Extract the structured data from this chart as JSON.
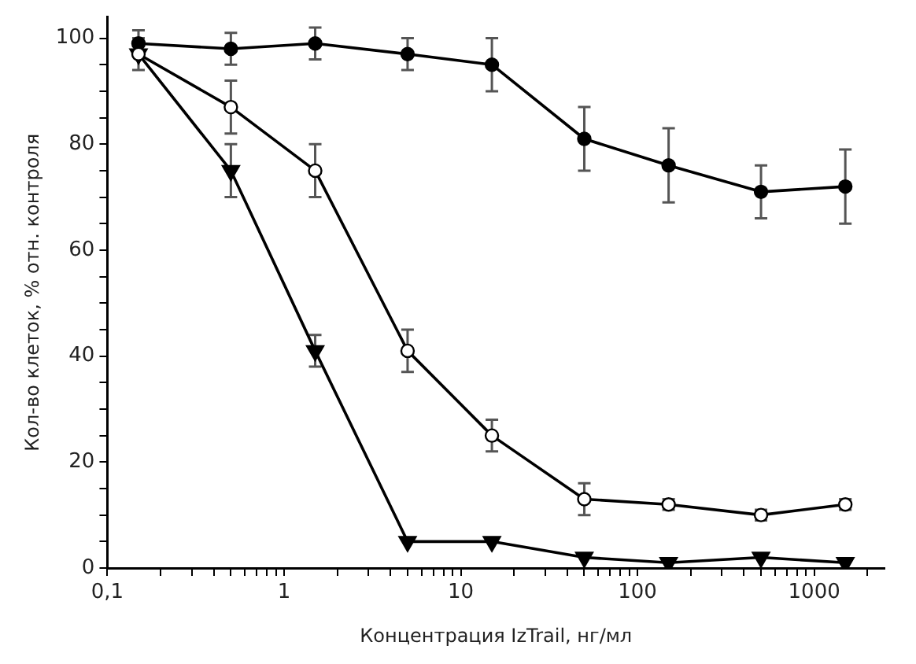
{
  "chart_data": {
    "type": "line",
    "xlabel": "Концентрация IzTrail, нг/мл",
    "ylabel": "Кол-во клеток, % отн. контроля",
    "x": [
      0.15,
      0.5,
      1.5,
      5,
      15,
      50,
      150,
      500,
      1500
    ],
    "log": "x",
    "xlim": [
      0.1,
      2500
    ],
    "xticks": [
      {
        "value": 0.1,
        "label": "0,1"
      },
      {
        "value": 0.2,
        "label": null
      },
      {
        "value": 0.3,
        "label": null
      },
      {
        "value": 0.4,
        "label": null
      },
      {
        "value": 0.5,
        "label": null
      },
      {
        "value": 0.6,
        "label": null
      },
      {
        "value": 0.7,
        "label": null
      },
      {
        "value": 0.8,
        "label": null
      },
      {
        "value": 0.9,
        "label": null
      },
      1,
      {
        "value": 2,
        "label": null
      },
      {
        "value": 3,
        "label": null
      },
      {
        "value": 4,
        "label": null
      },
      {
        "value": 5,
        "label": null
      },
      {
        "value": 6,
        "label": null
      },
      {
        "value": 7,
        "label": null
      },
      {
        "value": 8,
        "label": null
      },
      {
        "value": 9,
        "label": null
      },
      10,
      {
        "value": 20,
        "label": null
      },
      {
        "value": 30,
        "label": null
      },
      {
        "value": 40,
        "label": null
      },
      {
        "value": 50,
        "label": null
      },
      {
        "value": 60,
        "label": null
      },
      {
        "value": 70,
        "label": null
      },
      {
        "value": 80,
        "label": null
      },
      {
        "value": 90,
        "label": null
      },
      100,
      {
        "value": 200,
        "label": null
      },
      {
        "value": 300,
        "label": null
      },
      {
        "value": 400,
        "label": null
      },
      {
        "value": 500,
        "label": null
      },
      {
        "value": 600,
        "label": null
      },
      {
        "value": 700,
        "label": null
      },
      {
        "value": 800,
        "label": null
      },
      {
        "value": 900,
        "label": null
      },
      1000,
      {
        "value": 2000,
        "label": null
      }
    ],
    "ylim": [
      0,
      104
    ],
    "yticks": [
      0,
      {
        "value": 5,
        "label": null
      },
      {
        "value": 10,
        "label": null
      },
      {
        "value": 15,
        "label": null
      },
      20,
      {
        "value": 25,
        "label": null
      },
      {
        "value": 30,
        "label": null
      },
      {
        "value": 35,
        "label": null
      },
      40,
      {
        "value": 45,
        "label": null
      },
      {
        "value": 50,
        "label": null
      },
      {
        "value": 55,
        "label": null
      },
      60,
      {
        "value": 65,
        "label": null
      },
      {
        "value": 70,
        "label": null
      },
      {
        "value": 75,
        "label": null
      },
      80,
      {
        "value": 85,
        "label": null
      },
      {
        "value": 90,
        "label": null
      },
      {
        "value": 95,
        "label": null
      },
      100
    ],
    "grid": false,
    "legend": false,
    "series": [
      {
        "color": "#000000",
        "marker": "triangle",
        "values": [
          97,
          75,
          41,
          5,
          5,
          2,
          1,
          2,
          1
        ],
        "errors": [
          null,
          5,
          3,
          null,
          null,
          null,
          null,
          null,
          null
        ]
      },
      {
        "color": "#000000",
        "marker": "circle",
        "values": [
          99,
          98,
          99,
          97,
          95,
          81,
          76,
          71,
          72
        ],
        "errors": [
          2.5,
          3,
          3,
          3,
          5,
          6,
          7,
          5,
          7
        ]
      },
      {
        "color": "#000000",
        "marker": "circle",
        "values": [
          97,
          87,
          75,
          41,
          25,
          13,
          12,
          10,
          12
        ],
        "errors": [
          3,
          5,
          5,
          4,
          3,
          3,
          1,
          1,
          1
        ]
      }
    ]
  }
}
